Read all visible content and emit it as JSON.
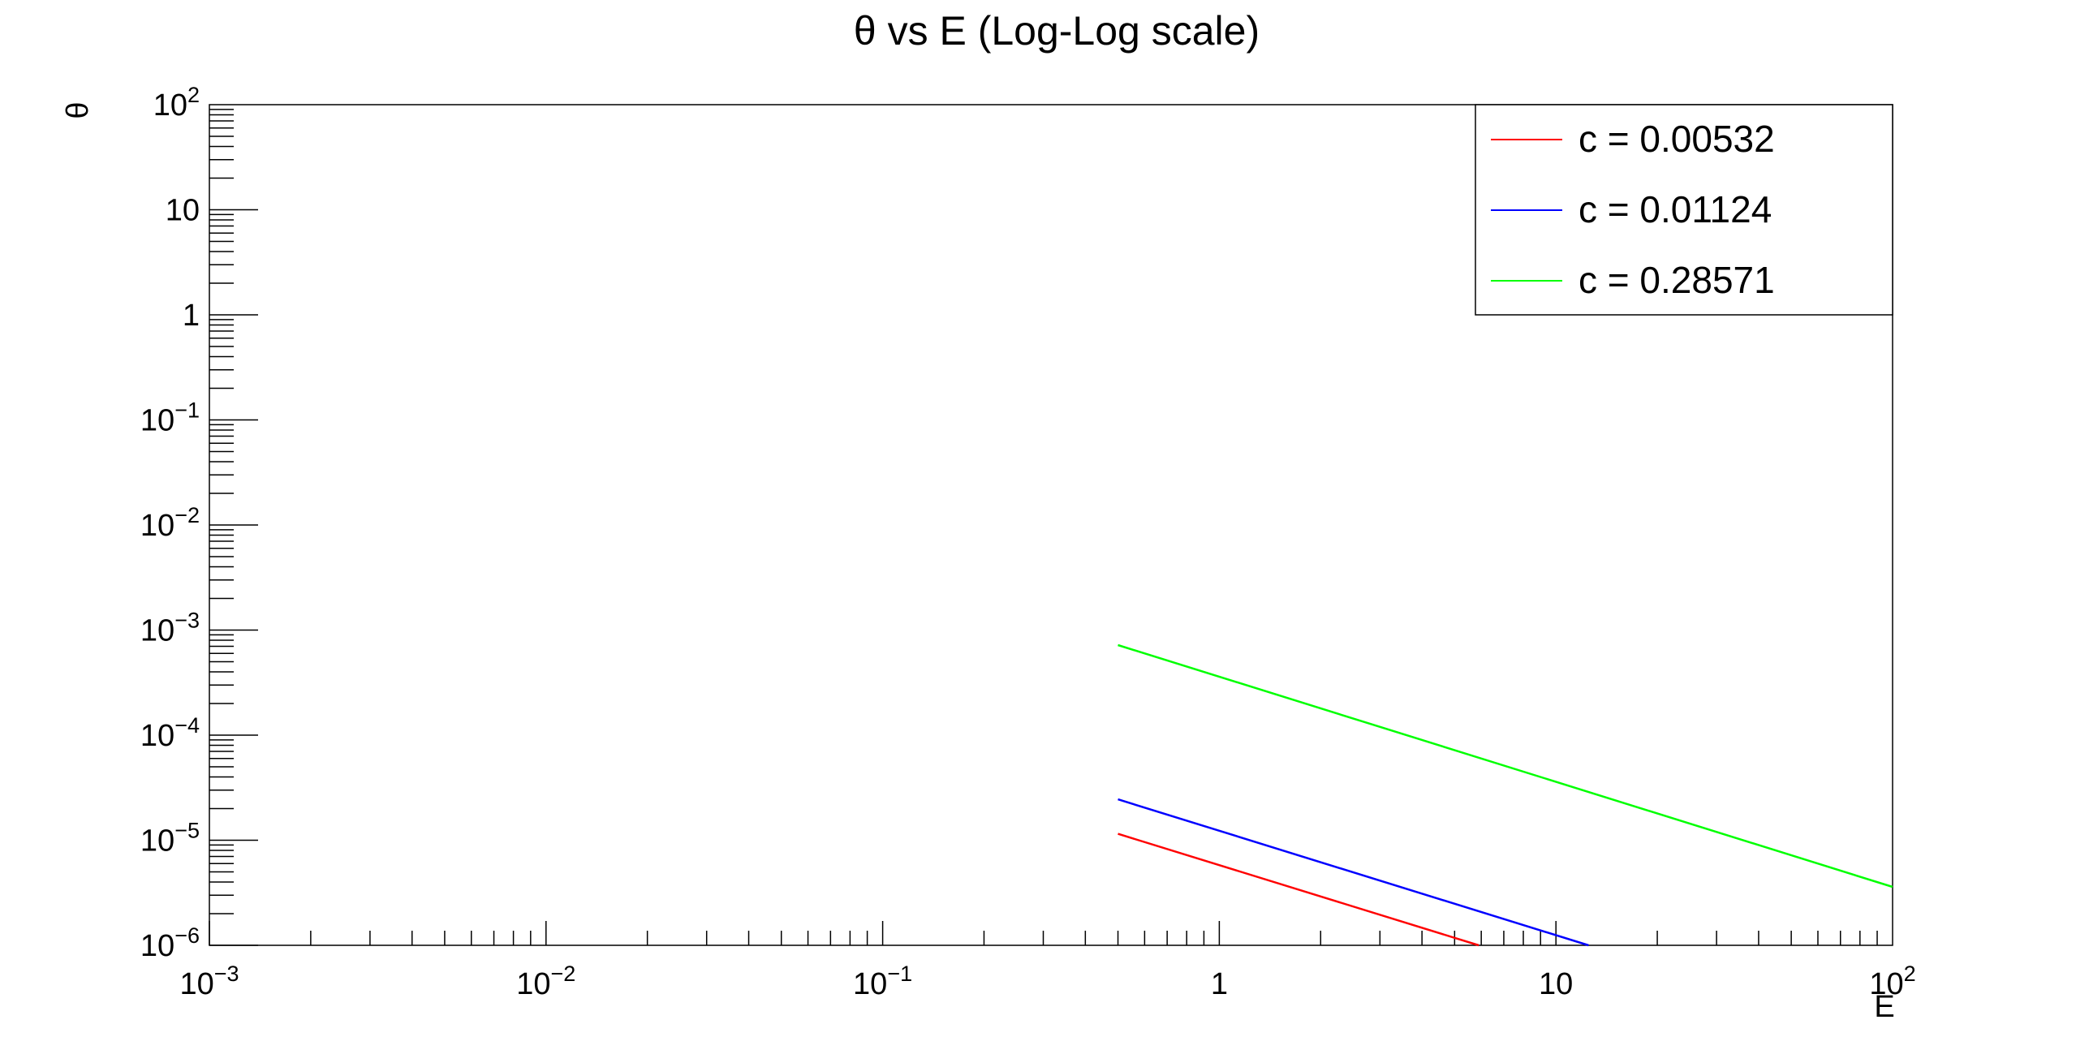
{
  "chart_data": {
    "type": "line",
    "title": "θ vs E (Log-Log scale)",
    "xlabel": "E",
    "ylabel": "θ",
    "xscale": "log",
    "yscale": "log",
    "xlim": [
      0.001,
      100
    ],
    "ylim": [
      1e-06,
      100
    ],
    "grid": false,
    "legend_position": "top-right",
    "x_ticks": [
      {
        "base": "10",
        "exp": "−3"
      },
      {
        "base": "10",
        "exp": "−2"
      },
      {
        "base": "10",
        "exp": "−1"
      },
      {
        "base": "1",
        "exp": ""
      },
      {
        "base": "10",
        "exp": ""
      },
      {
        "base": "10",
        "exp": "2"
      }
    ],
    "y_ticks": [
      {
        "base": "10",
        "exp": "−6"
      },
      {
        "base": "10",
        "exp": "−5"
      },
      {
        "base": "10",
        "exp": "−4"
      },
      {
        "base": "10",
        "exp": "−3"
      },
      {
        "base": "10",
        "exp": "−2"
      },
      {
        "base": "10",
        "exp": "−1"
      },
      {
        "base": "1",
        "exp": ""
      },
      {
        "base": "10",
        "exp": ""
      },
      {
        "base": "10",
        "exp": "2"
      }
    ],
    "series": [
      {
        "name": "c = 0.00532",
        "color": "#ff0000",
        "points": [
          [
            0.5,
            1.15e-05
          ],
          [
            5.9,
            1e-06
          ]
        ]
      },
      {
        "name": "c = 0.01124",
        "color": "#0000ff",
        "points": [
          [
            0.5,
            2.45e-05
          ],
          [
            12.5,
            1e-06
          ]
        ]
      },
      {
        "name": "c = 0.28571",
        "color": "#00ff00",
        "points": [
          [
            0.5,
            0.00072
          ],
          [
            100,
            3.6e-06
          ]
        ]
      }
    ]
  }
}
